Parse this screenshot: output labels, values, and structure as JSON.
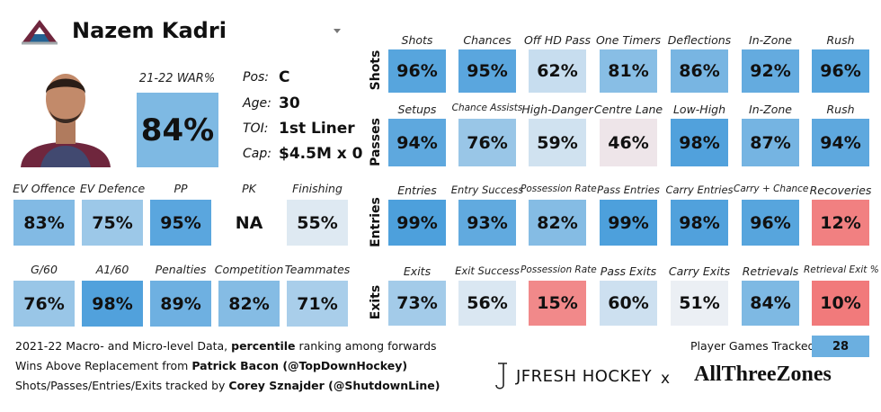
{
  "header": {
    "name": "Nazem Kadri"
  },
  "war": {
    "label": "21-22 WAR%",
    "value": "84%"
  },
  "bio": [
    {
      "label": "Pos:",
      "value": "C"
    },
    {
      "label": "Age:",
      "value": "30"
    },
    {
      "label": "TOI:",
      "value": "1st Liner"
    },
    {
      "label": "Cap:",
      "value": "$4.5M x 0"
    }
  ],
  "player_metrics": [
    [
      {
        "label": "EV Offence",
        "value": "83%"
      },
      {
        "label": "EV Defence",
        "value": "75%"
      },
      {
        "label": "PP",
        "value": "95%"
      },
      {
        "label": "PK",
        "value": "NA"
      },
      {
        "label": "Finishing",
        "value": "55%"
      }
    ],
    [
      {
        "label": "G/60",
        "value": "76%"
      },
      {
        "label": "A1/60",
        "value": "98%"
      },
      {
        "label": "Penalties",
        "value": "89%"
      },
      {
        "label": "Competition",
        "value": "82%"
      },
      {
        "label": "Teammates",
        "value": "71%"
      }
    ]
  ],
  "tracking": {
    "rows": [
      {
        "name": "Shots",
        "cells": [
          {
            "label": "Shots",
            "value": "96%"
          },
          {
            "label": "Chances",
            "value": "95%"
          },
          {
            "label": "Off HD Pass",
            "value": "62%"
          },
          {
            "label": "One Timers",
            "value": "81%"
          },
          {
            "label": "Deflections",
            "value": "86%"
          },
          {
            "label": "In-Zone",
            "value": "92%"
          },
          {
            "label": "Rush",
            "value": "96%"
          }
        ]
      },
      {
        "name": "Passes",
        "cells": [
          {
            "label": "Setups",
            "value": "94%"
          },
          {
            "label": "Chance Assists",
            "value": "76%"
          },
          {
            "label": "High-Danger",
            "value": "59%"
          },
          {
            "label": "Centre Lane",
            "value": "46%"
          },
          {
            "label": "Low-High",
            "value": "98%"
          },
          {
            "label": "In-Zone",
            "value": "87%"
          },
          {
            "label": "Rush",
            "value": "94%"
          }
        ]
      },
      {
        "name": "Entries",
        "cells": [
          {
            "label": "Entries",
            "value": "99%"
          },
          {
            "label": "Entry Success",
            "value": "93%"
          },
          {
            "label": "Possession Rate",
            "value": "82%"
          },
          {
            "label": "Pass Entries",
            "value": "99%"
          },
          {
            "label": "Carry Entries",
            "value": "98%"
          },
          {
            "label": "Carry + Chance",
            "value": "96%"
          },
          {
            "label": "Recoveries",
            "value": "12%"
          }
        ]
      },
      {
        "name": "Exits",
        "cells": [
          {
            "label": "Exits",
            "value": "73%"
          },
          {
            "label": "Exit Success",
            "value": "56%"
          },
          {
            "label": "Possession Rate",
            "value": "15%"
          },
          {
            "label": "Pass Exits",
            "value": "60%"
          },
          {
            "label": "Carry Exits",
            "value": "51%"
          },
          {
            "label": "Retrievals",
            "value": "84%"
          },
          {
            "label": "Retrieval Exit %",
            "value": "10%"
          }
        ]
      }
    ]
  },
  "footer": {
    "lines": [
      [
        {
          "text": "2021-22 Macro- and Micro-level Data, "
        },
        {
          "text": "percentile",
          "bold": true
        },
        {
          "text": " ranking among forwards"
        }
      ],
      [
        {
          "text": "Wins Above Replacement from "
        },
        {
          "text": "Patrick Bacon (@TopDownHockey)",
          "bold": true
        }
      ],
      [
        {
          "text": "Shots/Passes/Entries/Exits tracked by "
        },
        {
          "text": "Corey Sznajder (@ShutdownLine)",
          "bold": true
        }
      ]
    ],
    "games_label": "Player Games Tracked:",
    "games": "28"
  },
  "brands": {
    "jfresh": "JFRESH HOCKEY",
    "x": "x",
    "atz": "AllThreeZones"
  }
}
